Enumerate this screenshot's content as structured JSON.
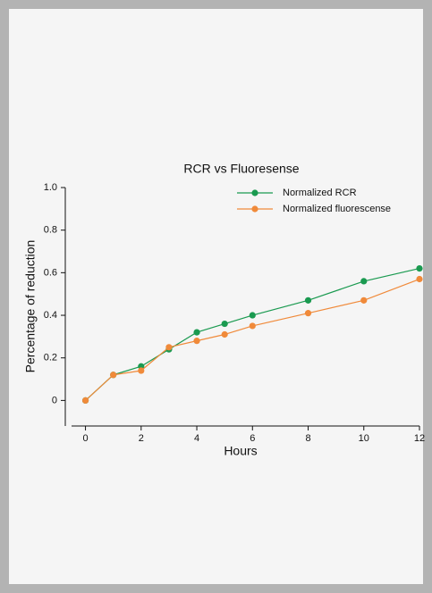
{
  "chart_data": {
    "type": "line",
    "title": "RCR vs Fluoresense",
    "x_label": "Hours",
    "y_label": "Percentage of reduction",
    "x": [
      0,
      1,
      2,
      3,
      4,
      5,
      6,
      8,
      10,
      12
    ],
    "series": [
      {
        "name": "Normalized RCR",
        "color": "#1a9a50",
        "values": [
          0,
          0.12,
          0.16,
          0.24,
          0.32,
          0.36,
          0.4,
          0.47,
          0.56,
          0.62
        ]
      },
      {
        "name": "Normalized fluorescense",
        "color": "#f08a3a",
        "values": [
          0,
          0.12,
          0.14,
          0.25,
          0.28,
          0.31,
          0.35,
          0.41,
          0.47,
          0.57
        ]
      }
    ],
    "xlim": [
      -0.5,
      12
    ],
    "xticks": [
      0,
      2,
      4,
      6,
      8,
      10,
      12
    ],
    "ylim": [
      -0.12,
      1.0
    ],
    "yticks": [
      0,
      0.2,
      0.4,
      0.6,
      0.8,
      {
        "value": 1.0,
        "label": "1.0"
      }
    ],
    "legend": "upper right"
  }
}
